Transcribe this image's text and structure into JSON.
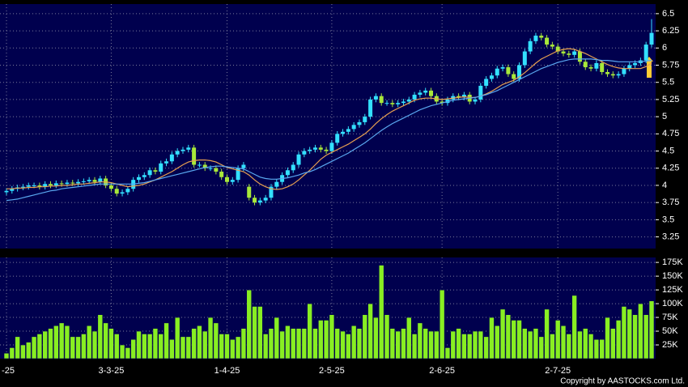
{
  "chart_data": [
    {
      "type": "candlestick",
      "categories": [
        "-25",
        null,
        null,
        null,
        null,
        null,
        null,
        null,
        null,
        null,
        null,
        null,
        null,
        null,
        null,
        null,
        null,
        null,
        null,
        "3-3-25",
        null,
        null,
        null,
        null,
        null,
        null,
        null,
        null,
        null,
        null,
        null,
        null,
        null,
        null,
        null,
        null,
        null,
        null,
        null,
        null,
        "1-4-25",
        null,
        null,
        null,
        null,
        null,
        null,
        null,
        null,
        null,
        null,
        null,
        null,
        null,
        null,
        null,
        null,
        null,
        null,
        "2-5-25",
        null,
        null,
        null,
        null,
        null,
        null,
        null,
        null,
        null,
        null,
        null,
        null,
        null,
        null,
        null,
        null,
        null,
        null,
        null,
        "2-6-25",
        null,
        null,
        null,
        null,
        null,
        null,
        null,
        null,
        null,
        null,
        null,
        null,
        null,
        null,
        null,
        null,
        null,
        null,
        null,
        null,
        "2-7-25",
        null,
        null,
        null,
        null,
        null,
        null,
        null,
        null,
        null,
        null,
        null,
        null,
        null,
        null,
        null,
        null,
        null
      ],
      "open": [
        3.9,
        3.92,
        3.95,
        3.97,
        3.98,
        4.0,
        4.0,
        3.98,
        4.02,
        4.0,
        4.03,
        4.02,
        4.04,
        4.03,
        4.05,
        4.06,
        4.08,
        4.05,
        4.1,
        4.0,
        3.95,
        3.88,
        3.9,
        3.95,
        4.08,
        4.12,
        4.15,
        4.22,
        4.2,
        4.32,
        4.35,
        4.45,
        4.5,
        4.52,
        4.55,
        4.3,
        4.3,
        4.25,
        4.25,
        4.2,
        4.12,
        4.05,
        4.08,
        4.25,
        3.98,
        3.82,
        3.75,
        3.78,
        3.82,
        3.98,
        4.05,
        4.15,
        4.22,
        4.3,
        4.45,
        4.5,
        4.52,
        4.55,
        4.52,
        4.5,
        4.62,
        4.75,
        4.78,
        4.82,
        4.88,
        4.92,
        5.0,
        5.25,
        5.3,
        5.2,
        5.2,
        5.18,
        5.2,
        5.22,
        5.25,
        5.32,
        5.35,
        5.38,
        5.3,
        5.22,
        5.2,
        5.25,
        5.3,
        5.28,
        5.32,
        5.22,
        5.25,
        5.45,
        5.55,
        5.6,
        5.7,
        5.72,
        5.62,
        5.55,
        5.75,
        5.95,
        6.1,
        6.18,
        6.15,
        6.05,
        6.02,
        5.95,
        5.92,
        5.9,
        5.95,
        5.8,
        5.72,
        5.7,
        5.78,
        5.65,
        5.62,
        5.6,
        5.62,
        5.7,
        5.75,
        5.78,
        5.82,
        6.05
      ],
      "high": [
        3.96,
        3.99,
        4.01,
        4.02,
        4.04,
        4.04,
        4.04,
        4.06,
        4.06,
        4.07,
        4.07,
        4.08,
        4.08,
        4.09,
        4.1,
        4.12,
        4.12,
        4.14,
        4.14,
        4.04,
        3.99,
        3.94,
        3.99,
        4.12,
        4.16,
        4.19,
        4.26,
        4.26,
        4.36,
        4.39,
        4.49,
        4.54,
        4.56,
        4.59,
        4.59,
        4.34,
        4.34,
        4.29,
        4.29,
        4.24,
        4.16,
        4.12,
        4.29,
        4.34,
        4.02,
        3.86,
        3.82,
        3.86,
        4.02,
        4.09,
        4.19,
        4.26,
        4.34,
        4.49,
        4.54,
        4.56,
        4.59,
        4.59,
        4.56,
        4.66,
        4.79,
        4.82,
        4.86,
        4.92,
        4.96,
        5.04,
        5.29,
        5.34,
        5.34,
        5.24,
        5.24,
        5.24,
        5.26,
        5.29,
        5.36,
        5.39,
        5.42,
        5.42,
        5.34,
        5.26,
        5.29,
        5.34,
        5.34,
        5.36,
        5.36,
        5.29,
        5.49,
        5.59,
        5.64,
        5.74,
        5.76,
        5.76,
        5.66,
        5.79,
        5.99,
        6.14,
        6.22,
        6.22,
        6.19,
        6.09,
        6.06,
        5.99,
        5.96,
        5.99,
        5.99,
        5.84,
        5.76,
        5.82,
        5.82,
        5.69,
        5.66,
        5.66,
        5.74,
        5.79,
        5.82,
        5.86,
        6.09,
        6.42
      ],
      "low": [
        3.86,
        3.88,
        3.91,
        3.93,
        3.94,
        3.96,
        3.94,
        3.94,
        3.96,
        3.96,
        3.98,
        3.98,
        3.99,
        3.99,
        4.01,
        4.02,
        4.01,
        4.01,
        3.96,
        3.91,
        3.84,
        3.84,
        3.86,
        3.91,
        4.04,
        4.08,
        4.11,
        4.16,
        4.16,
        4.28,
        4.31,
        4.41,
        4.46,
        4.48,
        4.26,
        4.26,
        4.21,
        4.21,
        4.16,
        4.08,
        4.01,
        4.01,
        4.04,
        4.21,
        3.78,
        3.71,
        3.71,
        3.74,
        3.78,
        3.94,
        4.01,
        4.11,
        4.18,
        4.26,
        4.41,
        4.46,
        4.48,
        4.48,
        4.46,
        4.46,
        4.58,
        4.71,
        4.74,
        4.78,
        4.84,
        4.88,
        4.96,
        5.21,
        5.16,
        5.16,
        5.14,
        5.14,
        5.16,
        5.18,
        5.21,
        5.28,
        5.31,
        5.26,
        5.18,
        5.16,
        5.16,
        5.21,
        5.24,
        5.24,
        5.18,
        5.18,
        5.21,
        5.41,
        5.51,
        5.56,
        5.66,
        5.58,
        5.51,
        5.51,
        5.71,
        5.91,
        6.06,
        6.11,
        6.01,
        5.98,
        5.91,
        5.88,
        5.86,
        5.86,
        5.76,
        5.68,
        5.66,
        5.66,
        5.61,
        5.58,
        5.56,
        5.56,
        5.58,
        5.66,
        5.71,
        5.74,
        5.78,
        6.01
      ],
      "close": [
        3.92,
        3.95,
        3.97,
        3.98,
        4.0,
        4.0,
        3.98,
        4.02,
        4.0,
        4.03,
        4.02,
        4.04,
        4.03,
        4.05,
        4.06,
        4.08,
        4.05,
        4.1,
        4.0,
        3.95,
        3.88,
        3.9,
        3.95,
        4.08,
        4.12,
        4.15,
        4.22,
        4.2,
        4.32,
        4.35,
        4.45,
        4.5,
        4.52,
        4.55,
        4.3,
        4.3,
        4.25,
        4.25,
        4.2,
        4.12,
        4.05,
        4.08,
        4.25,
        4.3,
        3.82,
        3.75,
        3.78,
        3.82,
        3.98,
        4.05,
        4.15,
        4.22,
        4.3,
        4.45,
        4.5,
        4.52,
        4.55,
        4.52,
        4.5,
        4.62,
        4.75,
        4.78,
        4.82,
        4.88,
        4.92,
        5.0,
        5.25,
        5.3,
        5.2,
        5.2,
        5.18,
        5.2,
        5.22,
        5.25,
        5.32,
        5.35,
        5.38,
        5.3,
        5.22,
        5.2,
        5.25,
        5.3,
        5.28,
        5.32,
        5.22,
        5.25,
        5.45,
        5.55,
        5.6,
        5.7,
        5.72,
        5.62,
        5.55,
        5.75,
        5.95,
        6.1,
        6.18,
        6.15,
        6.05,
        6.02,
        5.95,
        5.92,
        5.9,
        5.95,
        5.8,
        5.72,
        5.7,
        5.78,
        5.65,
        5.62,
        5.6,
        5.62,
        5.7,
        5.75,
        5.78,
        5.82,
        6.05,
        6.22
      ],
      "up_color": "#33e0ff",
      "down_color": "#a8e83a",
      "lines": [
        {
          "color": "#e8a050",
          "values": [
            3.95,
            3.95,
            3.96,
            3.96,
            3.97,
            3.97,
            3.98,
            3.98,
            3.99,
            3.99,
            4.0,
            4.0,
            4.01,
            4.02,
            4.02,
            4.03,
            4.04,
            4.05,
            4.05,
            4.04,
            4.02,
            4.0,
            3.98,
            3.99,
            4.0,
            4.02,
            4.05,
            4.08,
            4.12,
            4.16,
            4.2,
            4.25,
            4.3,
            4.34,
            4.36,
            4.37,
            4.37,
            4.36,
            4.34,
            4.3,
            4.26,
            4.24,
            4.22,
            4.2,
            4.15,
            4.08,
            4.02,
            3.98,
            3.95,
            3.94,
            3.95,
            3.98,
            4.02,
            4.08,
            4.15,
            4.22,
            4.3,
            4.38,
            4.44,
            4.48,
            4.52,
            4.56,
            4.6,
            4.65,
            4.7,
            4.75,
            4.82,
            4.9,
            4.97,
            5.03,
            5.08,
            5.12,
            5.16,
            5.2,
            5.24,
            5.26,
            5.27,
            5.27,
            5.26,
            5.25,
            5.26,
            5.27,
            5.28,
            5.29,
            5.28,
            5.28,
            5.3,
            5.33,
            5.37,
            5.42,
            5.47,
            5.5,
            5.53,
            5.58,
            5.64,
            5.71,
            5.78,
            5.84,
            5.88,
            5.92,
            5.96,
            5.98,
            5.99,
            5.98,
            5.95,
            5.92,
            5.88,
            5.84,
            5.8,
            5.76,
            5.73,
            5.71,
            5.7,
            5.7,
            5.7,
            5.7,
            5.73,
            5.78
          ]
        },
        {
          "color": "#5aa8f0",
          "values": [
            3.78,
            3.79,
            3.8,
            3.82,
            3.84,
            3.86,
            3.88,
            3.9,
            3.92,
            3.93,
            3.95,
            3.96,
            3.97,
            3.98,
            3.99,
            4.0,
            4.01,
            4.02,
            4.02,
            4.02,
            4.02,
            4.02,
            4.02,
            4.02,
            4.03,
            4.04,
            4.06,
            4.08,
            4.1,
            4.12,
            4.14,
            4.16,
            4.18,
            4.2,
            4.22,
            4.24,
            4.26,
            4.27,
            4.28,
            4.28,
            4.27,
            4.26,
            4.25,
            4.24,
            4.2,
            4.16,
            4.12,
            4.1,
            4.09,
            4.09,
            4.1,
            4.11,
            4.13,
            4.15,
            4.18,
            4.2,
            4.23,
            4.27,
            4.31,
            4.35,
            4.39,
            4.43,
            4.47,
            4.52,
            4.57,
            4.62,
            4.68,
            4.74,
            4.8,
            4.85,
            4.9,
            4.94,
            4.98,
            5.02,
            5.06,
            5.1,
            5.13,
            5.16,
            5.18,
            5.2,
            5.22,
            5.24,
            5.25,
            5.26,
            5.27,
            5.28,
            5.3,
            5.32,
            5.35,
            5.38,
            5.42,
            5.46,
            5.5,
            5.54,
            5.58,
            5.62,
            5.66,
            5.7,
            5.73,
            5.76,
            5.79,
            5.81,
            5.83,
            5.84,
            5.84,
            5.84,
            5.84,
            5.83,
            5.82,
            5.82,
            5.81,
            5.8,
            5.8,
            5.8,
            5.8,
            5.8,
            5.81,
            5.82
          ]
        }
      ],
      "ylim": [
        3.08,
        6.64
      ],
      "yticks": [
        3.25,
        3.5,
        3.75,
        4,
        4.25,
        4.5,
        4.75,
        5,
        5.25,
        5.5,
        5.75,
        6,
        6.25,
        6.5
      ],
      "grid": true
    },
    {
      "type": "bar",
      "color": "#88ee22",
      "values": [
        10000,
        20000,
        40000,
        25000,
        30000,
        40000,
        45000,
        50000,
        55000,
        60000,
        65000,
        60000,
        40000,
        40000,
        45000,
        60000,
        50000,
        80000,
        65000,
        55000,
        45000,
        25000,
        20000,
        35000,
        50000,
        45000,
        45000,
        55000,
        45000,
        65000,
        35000,
        75000,
        40000,
        40000,
        55000,
        60000,
        50000,
        75000,
        65000,
        45000,
        45000,
        35000,
        40000,
        55000,
        125000,
        95000,
        95000,
        45000,
        55000,
        75000,
        50000,
        60000,
        55000,
        55000,
        55000,
        100000,
        55000,
        70000,
        70000,
        80000,
        55000,
        50000,
        45000,
        60000,
        55000,
        80000,
        100000,
        75000,
        170000,
        80000,
        55000,
        50000,
        55000,
        75000,
        45000,
        65000,
        55000,
        50000,
        50000,
        125000,
        20000,
        50000,
        55000,
        45000,
        45000,
        50000,
        50000,
        40000,
        75000,
        60000,
        90000,
        80000,
        70000,
        70000,
        55000,
        50000,
        55000,
        40000,
        90000,
        45000,
        70000,
        60000,
        45000,
        115000,
        50000,
        55000,
        45000,
        35000,
        35000,
        75000,
        55000,
        70000,
        95000,
        90000,
        80000,
        100000,
        80000,
        105000
      ],
      "ylim": [
        0,
        184000
      ],
      "yticks": [
        {
          "value": 25000,
          "label": "25K"
        },
        {
          "value": 50000,
          "label": "50K"
        },
        {
          "value": 75000,
          "label": "75K"
        },
        {
          "value": 100000,
          "label": "100K"
        },
        {
          "value": 125000,
          "label": "125K"
        },
        {
          "value": 150000,
          "label": "150K"
        },
        {
          "value": 175000,
          "label": "175K"
        }
      ],
      "grid": true
    }
  ],
  "copyright": "Copyright by AASTOCKS.com Ltd."
}
